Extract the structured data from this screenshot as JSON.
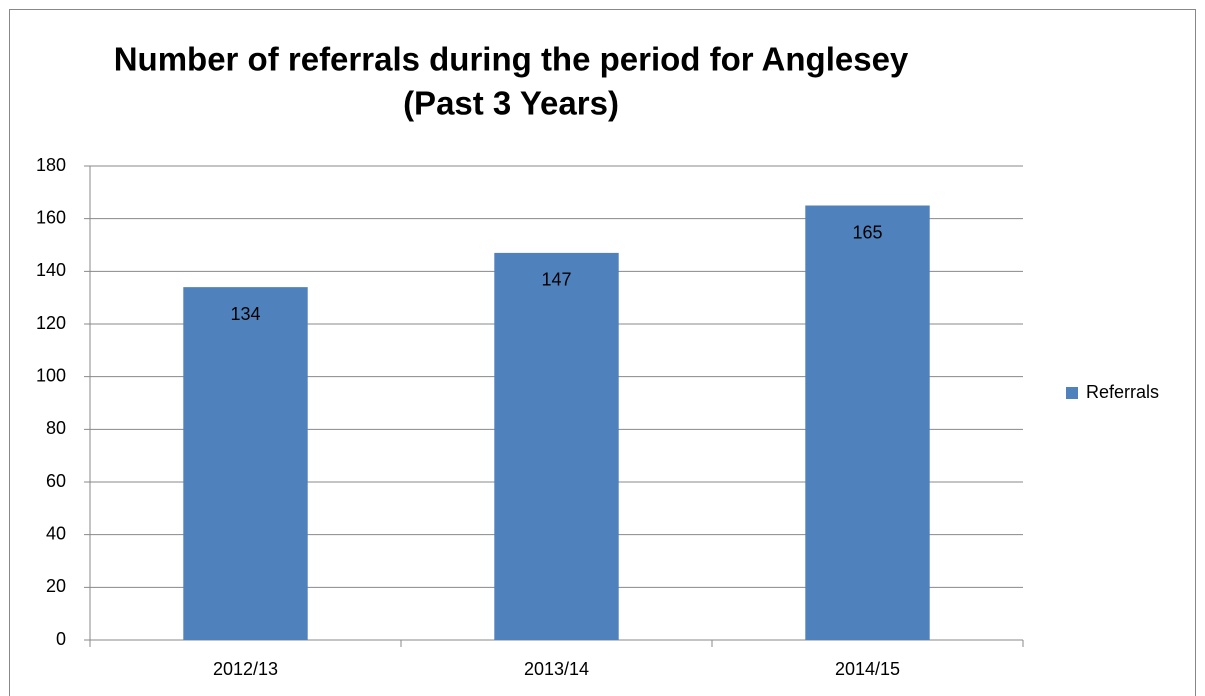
{
  "chart_data": {
    "type": "bar",
    "title": [
      "Number of referrals during the period for Anglesey",
      "(Past 3 Years)"
    ],
    "categories": [
      "2012/13",
      "2013/14",
      "2014/15"
    ],
    "series": [
      {
        "name": "Referrals",
        "color": "#4f81bd",
        "values": [
          134,
          147,
          165
        ]
      }
    ],
    "ylim": [
      0,
      180
    ],
    "yticks": [
      0,
      20,
      40,
      60,
      80,
      100,
      120,
      140,
      160,
      180
    ],
    "grid": true,
    "legend": "right",
    "data_labels": true
  }
}
